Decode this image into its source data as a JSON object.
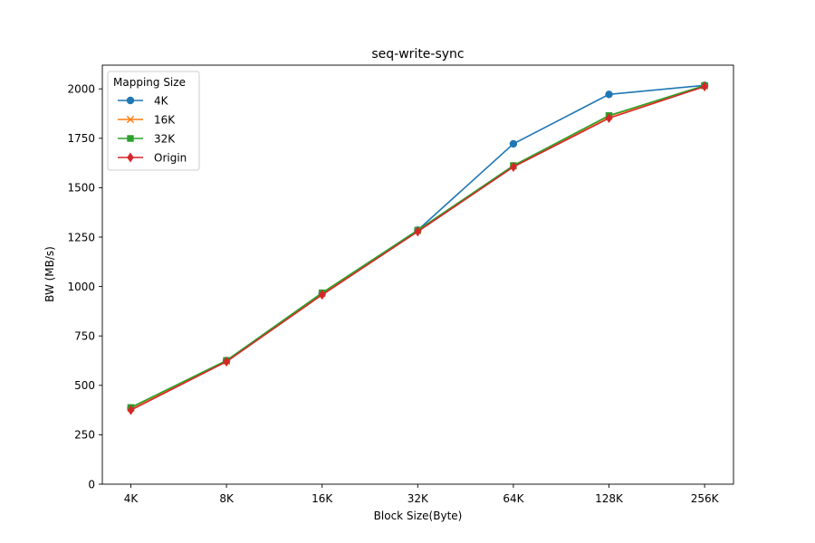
{
  "chart_data": {
    "type": "line",
    "title": "seq-write-sync",
    "xlabel": "Block Size(Byte)",
    "ylabel": "BW (MB/s)",
    "categories": [
      "4K",
      "8K",
      "16K",
      "32K",
      "64K",
      "128K",
      "256K"
    ],
    "yticks": [
      0,
      250,
      500,
      750,
      1000,
      1250,
      1500,
      1750,
      2000
    ],
    "ylim": [
      0,
      2120
    ],
    "grid": false,
    "legend": {
      "title": "Mapping Size",
      "placement": "top-left"
    },
    "series": [
      {
        "name": "4K",
        "color": "#1f77b4",
        "marker": "circle",
        "values": [
          385,
          625,
          965,
          1285,
          1722,
          1972,
          2018
        ]
      },
      {
        "name": "16K",
        "color": "#ff7f0e",
        "marker": "x",
        "values": [
          385,
          623,
          965,
          1283,
          1610,
          1862,
          2015
        ]
      },
      {
        "name": "32K",
        "color": "#2ca02c",
        "marker": "square",
        "values": [
          388,
          626,
          968,
          1285,
          1612,
          1865,
          2017
        ]
      },
      {
        "name": "Origin",
        "color": "#d62728",
        "marker": "diamond",
        "values": [
          375,
          620,
          958,
          1278,
          1605,
          1852,
          2012
        ]
      }
    ]
  }
}
